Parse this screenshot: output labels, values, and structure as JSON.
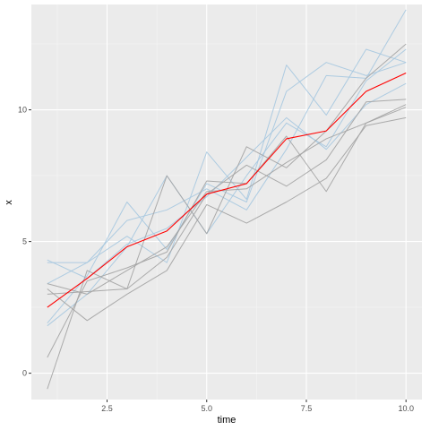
{
  "chart_data": {
    "type": "line",
    "xlabel": "time",
    "ylabel": "x",
    "xlim": [
      0.6,
      10.4
    ],
    "ylim": [
      -1.0,
      14.0
    ],
    "x_ticks": [
      2.5,
      5.0,
      7.5,
      10.0
    ],
    "x_tick_labels": [
      "2.5",
      "5.0",
      "7.5",
      "10.0"
    ],
    "y_ticks": [
      0,
      5,
      10
    ],
    "y_tick_labels": [
      "0",
      "5",
      "10"
    ],
    "grid": true,
    "legend": "none",
    "x": [
      1,
      2,
      3,
      4,
      5,
      6,
      7,
      8,
      9,
      10
    ],
    "series": [
      {
        "group": "blue",
        "color": "#a6c8e0",
        "values": [
          4.2,
          4.2,
          5.8,
          6.2,
          7.0,
          6.2,
          8.5,
          11.3,
          11.2,
          13.8
        ]
      },
      {
        "group": "blue",
        "color": "#a6c8e0",
        "values": [
          3.4,
          4.2,
          5.2,
          4.2,
          8.4,
          6.6,
          11.7,
          9.8,
          12.3,
          11.8
        ]
      },
      {
        "group": "blue",
        "color": "#a6c8e0",
        "values": [
          1.8,
          3.0,
          4.8,
          7.5,
          5.3,
          7.5,
          9.5,
          8.6,
          11.1,
          12.3
        ]
      },
      {
        "group": "blue",
        "color": "#a6c8e0",
        "values": [
          1.9,
          3.7,
          6.5,
          4.7,
          7.2,
          6.5,
          10.7,
          11.8,
          11.3,
          11.8
        ]
      },
      {
        "group": "blue",
        "color": "#a6c8e0",
        "values": [
          4.3,
          3.6,
          4.9,
          5.5,
          6.7,
          8.2,
          9.7,
          8.5,
          10.2,
          11.0
        ]
      },
      {
        "group": "gray",
        "color": "#a3a3a3",
        "values": [
          0.6,
          3.5,
          4.0,
          4.6,
          7.3,
          7.2,
          9.0,
          6.9,
          9.5,
          10.1
        ]
      },
      {
        "group": "gray",
        "color": "#a3a3a3",
        "values": [
          -0.6,
          3.9,
          3.2,
          7.5,
          5.3,
          8.6,
          7.8,
          9.2,
          11.2,
          12.5
        ]
      },
      {
        "group": "gray",
        "color": "#a3a3a3",
        "values": [
          3.2,
          2.0,
          3.0,
          3.9,
          6.4,
          5.7,
          6.5,
          7.4,
          9.4,
          9.7
        ]
      },
      {
        "group": "gray",
        "color": "#a3a3a3",
        "values": [
          3.0,
          3.1,
          3.2,
          4.4,
          6.8,
          7.9,
          7.1,
          8.1,
          10.3,
          10.4
        ]
      },
      {
        "group": "gray",
        "color": "#a3a3a3",
        "values": [
          3.4,
          3.0,
          3.9,
          4.8,
          6.9,
          7.0,
          8.0,
          8.9,
          9.5,
          10.2
        ]
      },
      {
        "group": "mean",
        "color": "#ff0000",
        "values": [
          2.5,
          3.6,
          4.8,
          5.4,
          6.8,
          7.2,
          8.9,
          9.2,
          10.7,
          11.4
        ]
      }
    ]
  },
  "colors": {
    "panel_background": "#ebebeb",
    "grid_major": "#ffffff",
    "grid_minor": "#f5f5f5",
    "mean_line": "#ff0000",
    "blue_lines": "#a6c8e0",
    "gray_lines": "#a3a3a3"
  }
}
